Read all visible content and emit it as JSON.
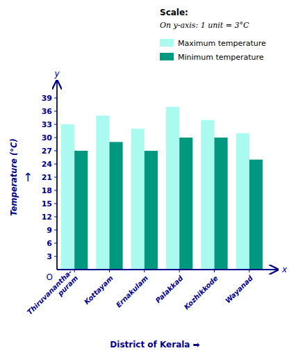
{
  "chart_data": {
    "type": "bar",
    "categories": [
      "Thiruvanantha-\npuram",
      "Kottayam",
      "Ernakulam",
      "Palakkad",
      "Kozhikkode",
      "Wayanad"
    ],
    "series": [
      {
        "name": "Maximum temperature",
        "color": "#AAFAF0",
        "values": [
          33,
          35,
          32,
          37,
          34,
          31
        ]
      },
      {
        "name": "Minimum temperature",
        "color": "#009980",
        "values": [
          27,
          29,
          27,
          30,
          30,
          25
        ]
      }
    ],
    "xlabel": "District of Kerala  ➡",
    "ylabel": "Temperature (°C)",
    "annotations": [
      "Scale:",
      "On y-axis: 1 unit = 3°C",
      "x",
      "y",
      "O",
      "↑"
    ],
    "ylim": [
      0,
      42
    ],
    "yticks": [
      3,
      6,
      9,
      12,
      15,
      18,
      21,
      24,
      27,
      30,
      33,
      36,
      39
    ],
    "grid": false,
    "legend": "upper right"
  }
}
